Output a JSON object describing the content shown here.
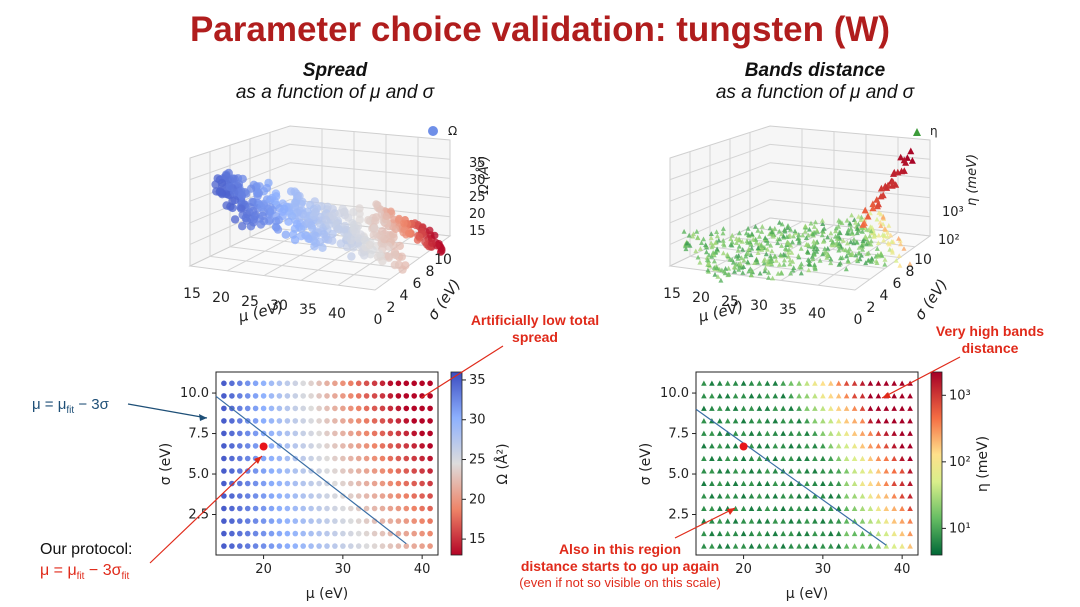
{
  "slide_title": "Parameter choice validation: tungsten (W)",
  "left_header": {
    "title": "Spread",
    "subtitle": "as a function of μ and σ"
  },
  "right_header": {
    "title": "Bands distance",
    "subtitle": "as a function of μ and σ"
  },
  "annotations": {
    "artificially_low": "Artificially low total spread",
    "very_high": "Very high bands distance",
    "fit_line_prefix": "μ = μ",
    "fit_line_sub": "fit",
    "fit_line_suffix": " − 3σ",
    "protocol_label": "Our protocol:",
    "protocol_prefix": "μ = μ",
    "protocol_sub1": "fit",
    "protocol_mid": " − 3σ",
    "protocol_sub2": "fit",
    "region_line1": "Also in this region",
    "region_line2": "distance starts to go up again",
    "region_line3": "(even if not so visible on this scale)"
  },
  "colors": {
    "title": "#b01d1d",
    "annotation_red": "#e02a1a",
    "annotation_blue": "#1e4f77",
    "fit_line": "#3a6ea5",
    "protocol_point": "#e8141a"
  },
  "chart_data": [
    {
      "type": "scatter",
      "name": "spread-3d",
      "legend": "Ω",
      "xlabel": "μ (eV)",
      "ylabel": "σ (eV)",
      "zlabel": "Ω (Å²)",
      "x_ticks": [
        "15",
        "20",
        "25",
        "30",
        "35",
        "40"
      ],
      "y_ticks": [
        "0",
        "2",
        "4",
        "6",
        "8",
        "10"
      ],
      "z_ticks": [
        "35",
        "30",
        "25",
        "20",
        "15"
      ],
      "colormap": "coolwarm_r"
    },
    {
      "type": "heatmap",
      "name": "spread-2d",
      "xlabel": "μ (eV)",
      "ylabel": "σ (eV)",
      "colorbar_label": "Ω (Å²)",
      "xlim": [
        14,
        42
      ],
      "ylim": [
        0,
        11.3
      ],
      "x_ticks": [
        20,
        30,
        40
      ],
      "y_ticks": [
        2.5,
        5.0,
        7.5,
        10.0
      ],
      "colorbar_ticks": [
        15,
        20,
        25,
        30,
        35
      ],
      "colorbar_range": [
        13,
        36
      ],
      "mu_values": [
        15,
        16,
        17,
        18,
        19,
        20,
        21,
        22,
        23,
        24,
        25,
        26,
        27,
        28,
        29,
        30,
        31,
        32,
        33,
        34,
        35,
        36,
        37,
        38,
        39,
        40,
        41
      ],
      "sigma_values": [
        0.5,
        1.0,
        1.5,
        2.0,
        2.5,
        3.0,
        3.5,
        4.0,
        4.5,
        5.0,
        5.5,
        6.0,
        6.5,
        7.0,
        7.5,
        8.0,
        8.5,
        9.0,
        9.5,
        10.0,
        10.5
      ],
      "grid_rows_drawn": 14,
      "fit_line": {
        "x": [
          14,
          38
        ],
        "y": [
          9.8,
          0.7
        ]
      },
      "protocol_point": {
        "x": 20,
        "y": 6.7
      }
    },
    {
      "type": "scatter",
      "name": "bands-3d",
      "legend": "η",
      "xlabel": "μ (eV)",
      "ylabel": "σ (eV)",
      "zlabel": "η (meV)",
      "x_ticks": [
        "15",
        "20",
        "25",
        "30",
        "35",
        "40"
      ],
      "y_ticks": [
        "0",
        "2",
        "4",
        "6",
        "8",
        "10"
      ],
      "z_ticks": [
        "10³",
        "10²"
      ],
      "colormap": "RdYlGn_r"
    },
    {
      "type": "heatmap",
      "name": "bands-2d",
      "xlabel": "μ (eV)",
      "ylabel": "σ (eV)",
      "colorbar_label": "η (meV)",
      "xlim": [
        14,
        42
      ],
      "ylim": [
        0,
        11.3
      ],
      "x_ticks": [
        20,
        30,
        40
      ],
      "y_ticks": [
        2.5,
        5.0,
        7.5,
        10.0
      ],
      "colorbar_ticks": [
        "10¹",
        "10²",
        "10³"
      ],
      "colorbar_log_range": [
        0.6,
        3.35
      ],
      "fit_line": {
        "x": [
          14,
          38
        ],
        "y": [
          9.0,
          0.6
        ]
      },
      "protocol_point": {
        "x": 20,
        "y": 6.7
      }
    }
  ]
}
